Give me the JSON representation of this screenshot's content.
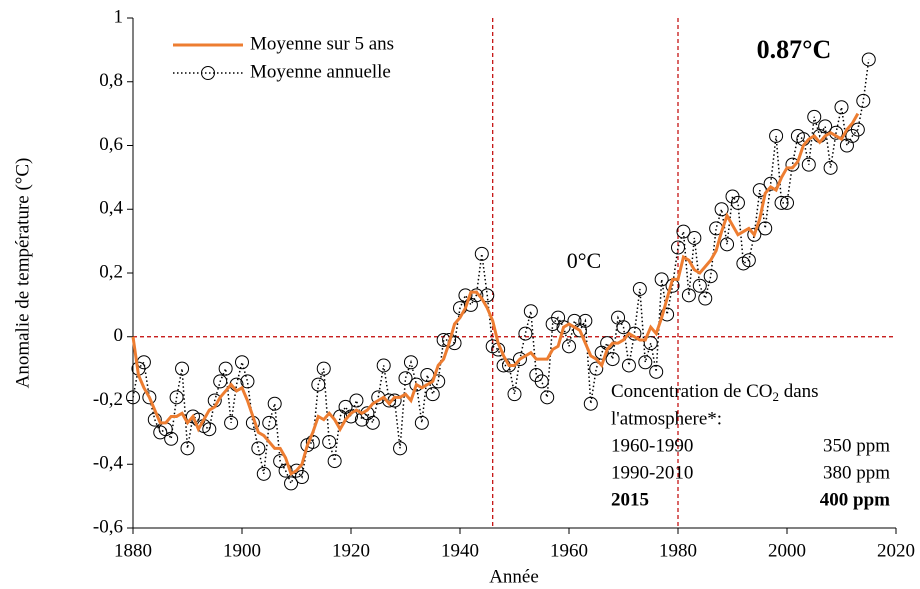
{
  "chart_data": {
    "type": "line",
    "x_label": "Année",
    "y_label": "Anomalie de température (°C)",
    "x": [
      1880,
      1881,
      1882,
      1883,
      1884,
      1885,
      1886,
      1887,
      1888,
      1889,
      1890,
      1891,
      1892,
      1893,
      1894,
      1895,
      1896,
      1897,
      1898,
      1899,
      1900,
      1901,
      1902,
      1903,
      1904,
      1905,
      1906,
      1907,
      1908,
      1909,
      1910,
      1911,
      1912,
      1913,
      1914,
      1915,
      1916,
      1917,
      1918,
      1919,
      1920,
      1921,
      1922,
      1923,
      1924,
      1925,
      1926,
      1927,
      1928,
      1929,
      1930,
      1931,
      1932,
      1933,
      1934,
      1935,
      1936,
      1937,
      1938,
      1939,
      1940,
      1941,
      1942,
      1943,
      1944,
      1945,
      1946,
      1947,
      1948,
      1949,
      1950,
      1951,
      1952,
      1953,
      1954,
      1955,
      1956,
      1957,
      1958,
      1959,
      1960,
      1961,
      1962,
      1963,
      1964,
      1965,
      1966,
      1967,
      1968,
      1969,
      1970,
      1971,
      1972,
      1973,
      1974,
      1975,
      1976,
      1977,
      1978,
      1979,
      1980,
      1981,
      1982,
      1983,
      1984,
      1985,
      1986,
      1987,
      1988,
      1989,
      1990,
      1991,
      1992,
      1993,
      1994,
      1995,
      1996,
      1997,
      1998,
      1999,
      2000,
      2001,
      2002,
      2003,
      2004,
      2005,
      2006,
      2007,
      2008,
      2009,
      2010,
      2011,
      2012,
      2013,
      2014,
      2015
    ],
    "series": [
      {
        "name": "Moyenne sur 5 ans",
        "color": "#ed7d31",
        "style": "solid",
        "values": [
          0.0,
          -0.12,
          -0.16,
          -0.19,
          -0.23,
          -0.27,
          -0.27,
          -0.25,
          -0.25,
          -0.24,
          -0.27,
          -0.25,
          -0.29,
          -0.26,
          -0.23,
          -0.22,
          -0.19,
          -0.17,
          -0.15,
          -0.17,
          -0.16,
          -0.2,
          -0.25,
          -0.3,
          -0.31,
          -0.33,
          -0.35,
          -0.35,
          -0.38,
          -0.43,
          -0.42,
          -0.4,
          -0.34,
          -0.3,
          -0.25,
          -0.26,
          -0.24,
          -0.26,
          -0.29,
          -0.26,
          -0.24,
          -0.23,
          -0.24,
          -0.23,
          -0.21,
          -0.2,
          -0.19,
          -0.21,
          -0.19,
          -0.19,
          -0.18,
          -0.2,
          -0.15,
          -0.16,
          -0.15,
          -0.14,
          -0.09,
          -0.07,
          -0.02,
          0.04,
          0.06,
          0.09,
          0.14,
          0.14,
          0.12,
          0.09,
          0.05,
          -0.02,
          -0.06,
          -0.09,
          -0.09,
          -0.07,
          -0.06,
          -0.05,
          -0.07,
          -0.07,
          -0.07,
          -0.04,
          -0.03,
          0.03,
          0.04,
          0.03,
          0.02,
          -0.02,
          -0.06,
          -0.07,
          -0.09,
          -0.04,
          -0.02,
          -0.02,
          -0.01,
          0.01,
          0.0,
          -0.01,
          -0.01,
          0.03,
          0.01,
          0.06,
          0.12,
          0.18,
          0.18,
          0.25,
          0.24,
          0.21,
          0.2,
          0.22,
          0.24,
          0.27,
          0.33,
          0.38,
          0.35,
          0.32,
          0.33,
          0.34,
          0.32,
          0.37,
          0.45,
          0.47,
          0.46,
          0.5,
          0.53,
          0.53,
          0.55,
          0.6,
          0.62,
          0.63,
          0.61,
          0.63,
          0.64,
          0.63,
          0.62,
          0.65,
          0.67,
          0.7,
          null,
          null
        ]
      },
      {
        "name": "Moyenne annuelle",
        "color": "#000000",
        "style": "dotted-circle",
        "values": [
          -0.19,
          -0.1,
          -0.08,
          -0.19,
          -0.26,
          -0.3,
          -0.29,
          -0.32,
          -0.19,
          -0.1,
          -0.35,
          -0.25,
          -0.26,
          -0.28,
          -0.29,
          -0.2,
          -0.14,
          -0.1,
          -0.27,
          -0.15,
          -0.08,
          -0.14,
          -0.27,
          -0.35,
          -0.43,
          -0.27,
          -0.21,
          -0.39,
          -0.42,
          -0.46,
          -0.42,
          -0.44,
          -0.34,
          -0.33,
          -0.15,
          -0.1,
          -0.33,
          -0.39,
          -0.25,
          -0.22,
          -0.25,
          -0.2,
          -0.26,
          -0.24,
          -0.27,
          -0.19,
          -0.09,
          -0.2,
          -0.2,
          -0.35,
          -0.13,
          -0.08,
          -0.15,
          -0.27,
          -0.12,
          -0.18,
          -0.14,
          -0.01,
          -0.01,
          -0.02,
          0.09,
          0.13,
          0.1,
          0.13,
          0.26,
          0.13,
          -0.03,
          -0.04,
          -0.09,
          -0.09,
          -0.18,
          -0.07,
          0.01,
          0.08,
          -0.12,
          -0.14,
          -0.19,
          0.04,
          0.06,
          0.03,
          -0.03,
          0.05,
          0.02,
          0.05,
          -0.21,
          -0.1,
          -0.05,
          -0.02,
          -0.07,
          0.06,
          0.03,
          -0.09,
          0.01,
          0.15,
          -0.08,
          -0.02,
          -0.11,
          0.18,
          0.07,
          0.16,
          0.28,
          0.33,
          0.13,
          0.31,
          0.16,
          0.12,
          0.19,
          0.34,
          0.4,
          0.29,
          0.44,
          0.42,
          0.23,
          0.24,
          0.32,
          0.46,
          0.34,
          0.48,
          0.63,
          0.42,
          0.42,
          0.54,
          0.63,
          0.62,
          0.54,
          0.69,
          0.63,
          0.66,
          0.53,
          0.64,
          0.72,
          0.6,
          0.63,
          0.65,
          0.74,
          0.87
        ]
      }
    ],
    "xlim": [
      1880,
      2020
    ],
    "xticks": [
      1880,
      1900,
      1920,
      1940,
      1960,
      1980,
      2000,
      2020
    ],
    "ylim": [
      -0.6,
      1
    ],
    "yticks": [
      {
        "value": -0.6,
        "label": "-0,6"
      },
      {
        "value": -0.4,
        "label": "-0,4"
      },
      {
        "value": -0.2,
        "label": "-0,2"
      },
      0,
      {
        "value": 0.2,
        "label": "0,2"
      },
      {
        "value": 0.4,
        "label": "0,4"
      },
      {
        "value": 0.6,
        "label": "0,6"
      },
      {
        "value": 0.8,
        "label": "0,8"
      },
      1
    ],
    "reference_lines": {
      "x": [
        1946,
        1980
      ],
      "y": [
        0
      ],
      "color": "#c00000"
    },
    "legend": "top-left",
    "annotations": [
      {
        "text": "0.87°C",
        "color": "#a50021"
      },
      {
        "text": "0°C"
      }
    ],
    "co2_box": {
      "title_before": "Concentration de CO",
      "title_sub": "2",
      "title_after": " dans",
      "title_line2": "l'atmosphere*:",
      "rows": [
        [
          "1960-1990",
          "350 ppm"
        ],
        [
          "1990-2010",
          "380 ppm"
        ],
        [
          "2015",
          "400 ppm"
        ]
      ],
      "highlight_color": "#e00000"
    }
  }
}
